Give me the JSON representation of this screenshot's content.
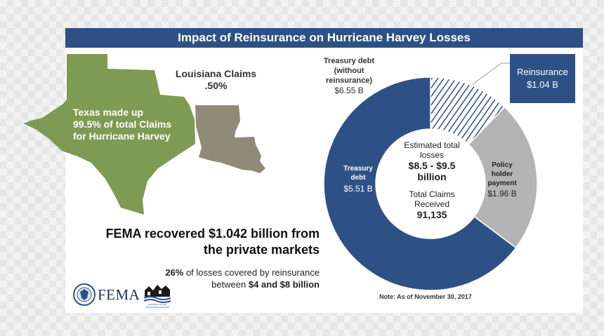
{
  "header": {
    "title": "Impact of Reinsurance on Hurricane Harvey Losses"
  },
  "map": {
    "texas_label_lines": [
      "Texas made up",
      "99.5% of total Claims",
      "for Hurricane Harvey"
    ],
    "louisiana_label": "Louisiana Claims",
    "louisiana_value": ".50%",
    "texas_color": "#7f9a52",
    "louisiana_color": "#8e8c76"
  },
  "headline": {
    "line1": "FEMA recovered $1.042 billion from",
    "line2": "the private markets"
  },
  "subline": {
    "pct": "26%",
    "line1_rest": " of losses covered by reinsurance",
    "line2_pre": "between ",
    "line2_bold": "$4 and $8 billion"
  },
  "logos": {
    "fema": "FEMA",
    "nfip": "NATIONAL FLOOD INSURANCE PROGRAM"
  },
  "note": "Note: As of November 30, 2017",
  "chart_data": {
    "type": "pie",
    "center": {
      "estimated_label_lines": [
        "Estimated total",
        "losses"
      ],
      "estimated_value_lines": [
        "$8.5 - $9.5",
        "billion"
      ],
      "claims_label_lines": [
        "Total Claims",
        "Received"
      ],
      "claims_value": "91,135"
    },
    "segments": [
      {
        "name_lines": [
          "Treasury",
          "debt"
        ],
        "value_label": "$5.51 B",
        "value": 5.51,
        "color": "#2e5185"
      },
      {
        "name_lines": [
          "Reinsurance"
        ],
        "value_label": "$1.04 B",
        "value": 1.04,
        "color": "hatched"
      },
      {
        "name_lines": [
          "Policy",
          "holder",
          "payment"
        ],
        "value_label": "$1.96 B",
        "value": 1.96,
        "color": "#b4b4b4"
      }
    ],
    "bracket_label_lines": [
      "Treasury debt",
      "(without",
      "reinsurance)"
    ],
    "bracket_value": "$6.55 B"
  }
}
